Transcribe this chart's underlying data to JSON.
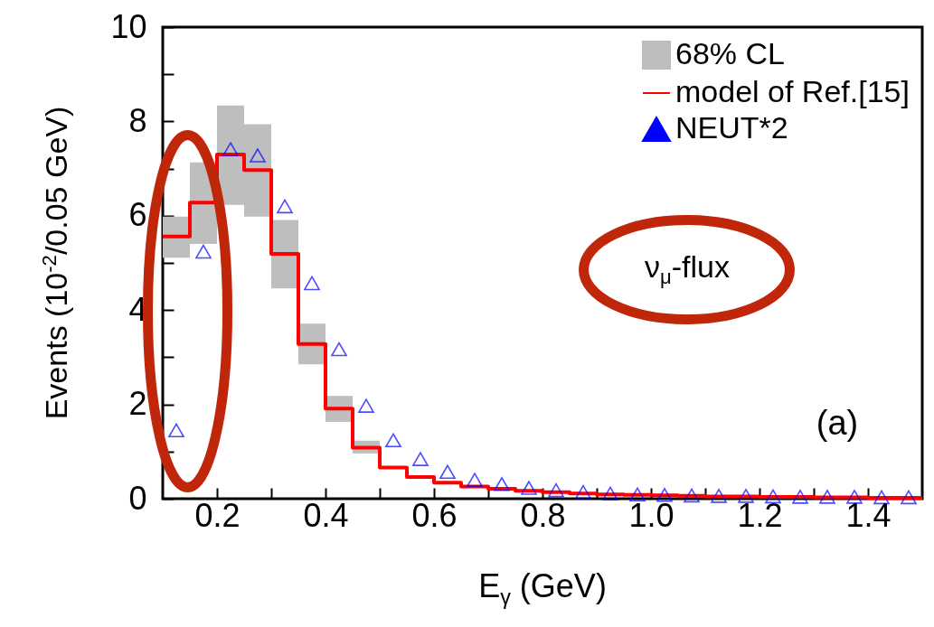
{
  "chart_data": {
    "type": "step",
    "xlabel": "E$_{γ}$  (GeV)",
    "ylabel": "Events (10$^{-2}$/0.05 GeV)",
    "xlim": [
      0.1,
      1.5
    ],
    "ylim": [
      0,
      10
    ],
    "xticks": [
      0.2,
      {
        "value": 0.3,
        "label": null
      },
      0.4,
      {
        "value": 0.5,
        "label": null
      },
      0.6,
      {
        "value": 0.7,
        "label": null
      },
      0.8,
      {
        "value": 0.9,
        "label": null
      },
      {
        "value": 1,
        "label": "1.0"
      },
      {
        "value": 1.1,
        "label": null
      },
      1.2,
      {
        "value": 1.3,
        "label": null
      },
      1.4
    ],
    "yticks": [
      0,
      {
        "value": 1,
        "label": null
      },
      2,
      {
        "value": 3,
        "label": null
      },
      4,
      {
        "value": 5,
        "label": null
      },
      6,
      {
        "value": 7,
        "label": null
      },
      8,
      {
        "value": 9,
        "label": null
      },
      10
    ],
    "legend": "top right",
    "series": [
      {
        "name": "68% CL",
        "type": "bar",
        "color": "#bebebe",
        "x": [
          0.125,
          0.175,
          0.225,
          0.275,
          0.325,
          0.375,
          0.425,
          0.475
        ],
        "base": [
          5.11,
          5.4,
          6.23,
          5.98,
          4.46,
          2.85,
          1.63,
          0.96
        ],
        "values": [
          0.87,
          1.73,
          2.11,
          1.96,
          1.45,
          0.86,
          0.55,
          0.27
        ]
      },
      {
        "name": "model of Ref.[15]",
        "color": "#ff0000",
        "x": [
          0.1,
          0.15,
          0.2,
          0.25,
          0.3,
          0.35,
          0.4,
          0.45,
          0.5,
          0.55,
          0.6,
          0.65,
          0.7,
          0.75,
          0.8,
          0.85,
          0.9,
          0.95,
          1.0,
          1.05,
          1.1,
          1.15,
          1.2,
          1.25,
          1.3,
          1.35,
          1.4,
          1.45,
          1.5
        ],
        "values": [
          5.56,
          6.28,
          7.3,
          6.97,
          5.19,
          3.28,
          1.91,
          1.08,
          0.66,
          0.46,
          0.34,
          0.26,
          0.21,
          0.17,
          0.14,
          0.11,
          0.09,
          0.08,
          0.07,
          0.06,
          0.05,
          0.05,
          0.04,
          0.04,
          0.03,
          0.03,
          0.02,
          0.02,
          0.02
        ]
      },
      {
        "name": "NEUT*2",
        "type": "scatter",
        "marker": "triangle",
        "color": "#0000ff",
        "x": [
          0.125,
          0.175,
          0.225,
          0.275,
          0.325,
          0.375,
          0.425,
          0.475,
          0.525,
          0.575,
          0.625,
          0.675,
          0.725,
          0.775,
          0.825,
          0.875,
          0.925,
          0.975,
          1.025,
          1.075,
          1.125,
          1.175,
          1.225,
          1.275,
          1.325,
          1.375,
          1.425,
          1.475
        ],
        "values": [
          1.45,
          5.24,
          7.41,
          7.28,
          6.2,
          4.57,
          3.17,
          1.97,
          1.24,
          0.84,
          0.57,
          0.4,
          0.31,
          0.23,
          0.18,
          0.14,
          0.11,
          0.09,
          0.08,
          0.07,
          0.06,
          0.06,
          0.05,
          0.04,
          0.04,
          0.04,
          0.03,
          0.03
        ]
      }
    ],
    "annotations": [
      "ν$_{μ}$-flux",
      "(a)"
    ]
  }
}
